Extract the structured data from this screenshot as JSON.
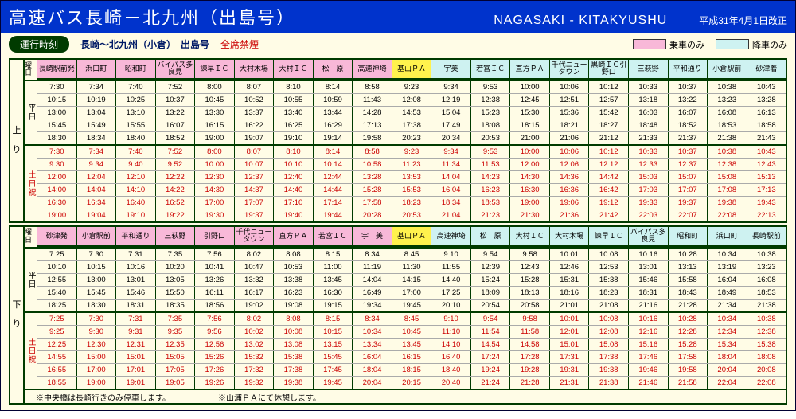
{
  "header": {
    "title_jp": "高速バス長崎－北九州（出島号）",
    "title_en": "NAGASAKI - KITAKYUSHU",
    "revision": "平成31年4月1日改正"
  },
  "subhead": {
    "operation_label": "運行時刻",
    "route": "長崎～北九州（小倉）　出島号",
    "nosmoke": "全席禁煙",
    "legend_board": "乗車のみ",
    "legend_alight": "降車のみ"
  },
  "colors": {
    "pink": "#f8b8d8",
    "cyan": "#cef2f1",
    "yellow": "#fff24d"
  },
  "notes": {
    "a": "※中央橋は長崎行きのみ停車します。",
    "b": "※山浦ＰＡにて休憩します。"
  },
  "up": {
    "dir_label": "上り",
    "first_header": "曜日",
    "stops": [
      "長崎駅前発",
      "浜口町",
      "昭和町",
      "バイパス多良見",
      "諫早ＩＣ",
      "大村木場",
      "大村ＩＣ",
      "松　原",
      "高速神埼",
      "基山ＰＡ",
      "宇美",
      "若宮ＩＣ",
      "直方ＰＡ",
      "千代ニュータウン",
      "黒崎ＩＣ引野口",
      "三萩野",
      "平和通り",
      "小倉駅前",
      "砂津着"
    ],
    "yellow_idx": [
      9
    ],
    "board_range": [
      0,
      8
    ],
    "alight_range": [
      10,
      18
    ],
    "groups": [
      {
        "label": "平日",
        "red": false,
        "rows": [
          [
            "7:30",
            "7:34",
            "7:40",
            "7:52",
            "8:00",
            "8:07",
            "8:10",
            "8:14",
            "8:58",
            "9:23",
            "9:34",
            "9:53",
            "10:00",
            "10:06",
            "10:12",
            "10:33",
            "10:37",
            "10:38",
            "10:43"
          ],
          [
            "10:15",
            "10:19",
            "10:25",
            "10:37",
            "10:45",
            "10:52",
            "10:55",
            "10:59",
            "11:43",
            "12:08",
            "12:19",
            "12:38",
            "12:45",
            "12:51",
            "12:57",
            "13:18",
            "13:22",
            "13:23",
            "13:28"
          ],
          [
            "13:00",
            "13:04",
            "13:10",
            "13:22",
            "13:30",
            "13:37",
            "13:40",
            "13:44",
            "14:28",
            "14:53",
            "15:04",
            "15:23",
            "15:30",
            "15:36",
            "15:42",
            "16:03",
            "16:07",
            "16:08",
            "16:13"
          ],
          [
            "15:45",
            "15:49",
            "15:55",
            "16:07",
            "16:15",
            "16:22",
            "16:25",
            "16:29",
            "17:13",
            "17:38",
            "17:49",
            "18:08",
            "18:15",
            "18:21",
            "18:27",
            "18:48",
            "18:52",
            "18:53",
            "18:58"
          ],
          [
            "18:30",
            "18:34",
            "18:40",
            "18:52",
            "19:00",
            "19:07",
            "19:10",
            "19:14",
            "19:58",
            "20:23",
            "20:34",
            "20:53",
            "21:00",
            "21:06",
            "21:12",
            "21:33",
            "21:37",
            "21:38",
            "21:43"
          ]
        ]
      },
      {
        "label": "土日祝",
        "red": true,
        "rows": [
          [
            "7:30",
            "7:34",
            "7:40",
            "7:52",
            "8:00",
            "8:07",
            "8:10",
            "8:14",
            "8:58",
            "9:23",
            "9:34",
            "9:53",
            "10:00",
            "10:06",
            "10:12",
            "10:33",
            "10:37",
            "10:38",
            "10:43"
          ],
          [
            "9:30",
            "9:34",
            "9:40",
            "9:52",
            "10:00",
            "10:07",
            "10:10",
            "10:14",
            "10:58",
            "11:23",
            "11:34",
            "11:53",
            "12:00",
            "12:06",
            "12:12",
            "12:33",
            "12:37",
            "12:38",
            "12:43"
          ],
          [
            "12:00",
            "12:04",
            "12:10",
            "12:22",
            "12:30",
            "12:37",
            "12:40",
            "12:44",
            "13:28",
            "13:53",
            "14:04",
            "14:23",
            "14:30",
            "14:36",
            "14:42",
            "15:03",
            "15:07",
            "15:08",
            "15:13"
          ],
          [
            "14:00",
            "14:04",
            "14:10",
            "14:22",
            "14:30",
            "14:37",
            "14:40",
            "14:44",
            "15:28",
            "15:53",
            "16:04",
            "16:23",
            "16:30",
            "16:36",
            "16:42",
            "17:03",
            "17:07",
            "17:08",
            "17:13"
          ],
          [
            "16:30",
            "16:34",
            "16:40",
            "16:52",
            "17:00",
            "17:07",
            "17:10",
            "17:14",
            "17:58",
            "18:23",
            "18:34",
            "18:53",
            "19:00",
            "19:06",
            "19:12",
            "19:33",
            "19:37",
            "19:38",
            "19:43"
          ],
          [
            "19:00",
            "19:04",
            "19:10",
            "19:22",
            "19:30",
            "19:37",
            "19:40",
            "19:44",
            "20:28",
            "20:53",
            "21:04",
            "21:23",
            "21:30",
            "21:36",
            "21:42",
            "22:03",
            "22:07",
            "22:08",
            "22:13"
          ]
        ]
      }
    ]
  },
  "down": {
    "dir_label": "下り",
    "first_header": "曜日",
    "stops": [
      "砂津発",
      "小倉駅前",
      "平和通り",
      "三萩野",
      "引野口",
      "千代ニュータウン",
      "直方ＰＡ",
      "若宮ＩＣ",
      "宇　美",
      "基山ＰＡ",
      "高速神埼",
      "松　原",
      "大村ＩＣ",
      "大村木場",
      "諫早ＩＣ",
      "バイパス多良見",
      "昭和町",
      "浜口町",
      "長崎駅前"
    ],
    "yellow_idx": [
      9
    ],
    "board_range": [
      0,
      8
    ],
    "alight_range": [
      10,
      18
    ],
    "groups": [
      {
        "label": "平日",
        "red": false,
        "rows": [
          [
            "7:25",
            "7:30",
            "7:31",
            "7:35",
            "7:56",
            "8:02",
            "8:08",
            "8:15",
            "8:34",
            "8:45",
            "9:10",
            "9:54",
            "9:58",
            "10:01",
            "10:08",
            "10:16",
            "10:28",
            "10:34",
            "10:38"
          ],
          [
            "10:10",
            "10:15",
            "10:16",
            "10:20",
            "10:41",
            "10:47",
            "10:53",
            "11:00",
            "11:19",
            "11:30",
            "11:55",
            "12:39",
            "12:43",
            "12:46",
            "12:53",
            "13:01",
            "13:13",
            "13:19",
            "13:23"
          ],
          [
            "12:55",
            "13:00",
            "13:01",
            "13:05",
            "13:26",
            "13:32",
            "13:38",
            "13:45",
            "14:04",
            "14:15",
            "14:40",
            "15:24",
            "15:28",
            "15:31",
            "15:38",
            "15:46",
            "15:58",
            "16:04",
            "16:08"
          ],
          [
            "15:40",
            "15:45",
            "15:46",
            "15:50",
            "16:11",
            "16:17",
            "16:23",
            "16:30",
            "16:49",
            "17:00",
            "17:25",
            "18:09",
            "18:13",
            "18:16",
            "18:23",
            "18:31",
            "18:43",
            "18:49",
            "18:53"
          ],
          [
            "18:25",
            "18:30",
            "18:31",
            "18:35",
            "18:56",
            "19:02",
            "19:08",
            "19:15",
            "19:34",
            "19:45",
            "20:10",
            "20:54",
            "20:58",
            "21:01",
            "21:08",
            "21:16",
            "21:28",
            "21:34",
            "21:38"
          ]
        ]
      },
      {
        "label": "土日祝",
        "red": true,
        "rows": [
          [
            "7:25",
            "7:30",
            "7:31",
            "7:35",
            "7:56",
            "8:02",
            "8:08",
            "8:15",
            "8:34",
            "8:45",
            "9:10",
            "9:54",
            "9:58",
            "10:01",
            "10:08",
            "10:16",
            "10:28",
            "10:34",
            "10:38"
          ],
          [
            "9:25",
            "9:30",
            "9:31",
            "9:35",
            "9:56",
            "10:02",
            "10:08",
            "10:15",
            "10:34",
            "10:45",
            "11:10",
            "11:54",
            "11:58",
            "12:01",
            "12:08",
            "12:16",
            "12:28",
            "12:34",
            "12:38"
          ],
          [
            "12:25",
            "12:30",
            "12:31",
            "12:35",
            "12:56",
            "13:02",
            "13:08",
            "13:15",
            "13:34",
            "13:45",
            "14:10",
            "14:54",
            "14:58",
            "15:01",
            "15:08",
            "15:16",
            "15:28",
            "15:34",
            "15:38"
          ],
          [
            "14:55",
            "15:00",
            "15:01",
            "15:05",
            "15:26",
            "15:32",
            "15:38",
            "15:45",
            "16:04",
            "16:15",
            "16:40",
            "17:24",
            "17:28",
            "17:31",
            "17:38",
            "17:46",
            "17:58",
            "18:04",
            "18:08"
          ],
          [
            "16:55",
            "17:00",
            "17:01",
            "17:05",
            "17:26",
            "17:32",
            "17:38",
            "17:45",
            "18:04",
            "18:15",
            "18:40",
            "19:24",
            "19:28",
            "19:31",
            "19:38",
            "19:46",
            "19:58",
            "20:04",
            "20:08"
          ],
          [
            "18:55",
            "19:00",
            "19:01",
            "19:05",
            "19:26",
            "19:32",
            "19:38",
            "19:45",
            "20:04",
            "20:15",
            "20:40",
            "21:24",
            "21:28",
            "21:31",
            "21:38",
            "21:46",
            "21:58",
            "22:04",
            "22:08"
          ]
        ]
      }
    ]
  }
}
